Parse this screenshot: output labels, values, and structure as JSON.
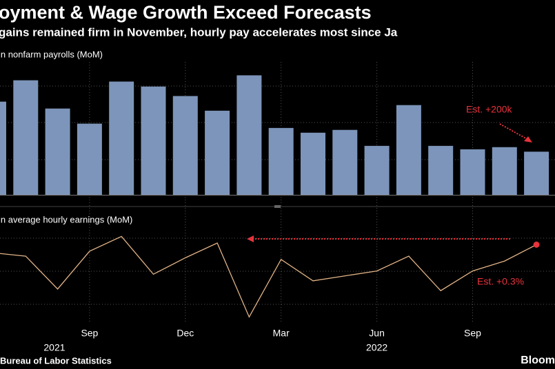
{
  "title": "oyment & Wage Growth Exceed Forecasts",
  "subtitle": "gains remained firm in November, hourly pay accelerates most since Ja",
  "source": "Bureau of Labor Statistics",
  "logo": "Bloom",
  "chart_data": [
    {
      "type": "bar",
      "label": "in nonfarm payrolls (MoM)",
      "color": "#7d95ba",
      "values": [
        432,
        531,
        400,
        330,
        525,
        502,
        458,
        390,
        554,
        310,
        288,
        301,
        227,
        416,
        227,
        211,
        221,
        200
      ],
      "ylim": [
        0,
        600
      ],
      "annotation": "Est. +200k",
      "annotation_color": "#e8323c"
    },
    {
      "type": "line",
      "label": "in average hourly earnings (MoM)",
      "color": "#e3b487",
      "categories": [
        null,
        null,
        null,
        "Sep",
        null,
        null,
        "Dec",
        null,
        null,
        "Mar",
        null,
        null,
        "Jun",
        null,
        null,
        "Sep",
        null,
        null
      ],
      "years": [
        "2021",
        "2022"
      ],
      "values": [
        0.51,
        0.49,
        0.29,
        0.52,
        0.61,
        0.38,
        0.48,
        0.57,
        0.12,
        0.47,
        0.34,
        0.37,
        0.4,
        0.49,
        0.28,
        0.4,
        0.46,
        0.56
      ],
      "ylim": [
        0.08,
        0.75
      ],
      "annotation": "Est. +0.3%",
      "annotation_color": "#e8323c"
    }
  ]
}
